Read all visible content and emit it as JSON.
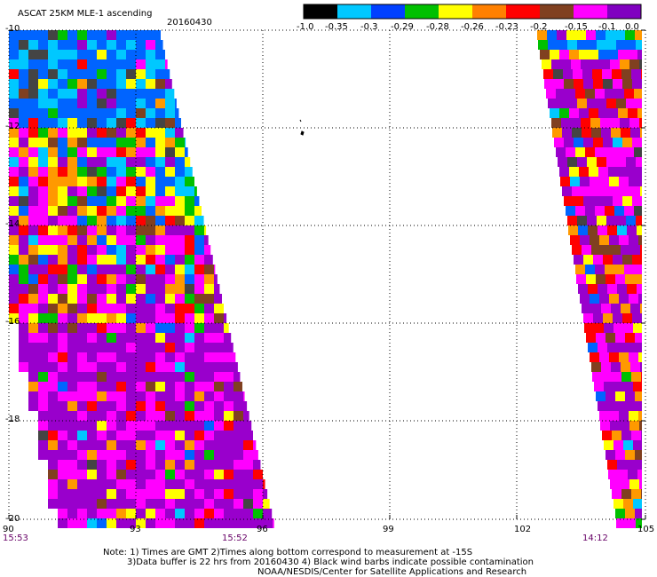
{
  "header": {
    "product": "ASCAT 25KM MLE-1 ascending",
    "date": "20160430"
  },
  "colorbar": {
    "labels": [
      "-1.0",
      "-0.35",
      "-0.3",
      "-0.29",
      "-0.28",
      "-0.26",
      "-0.23",
      "-0.2",
      "-0.15",
      "-0.1",
      "0.0"
    ],
    "colors": [
      "#000000",
      "#00c8ff",
      "#0040ff",
      "#00c000",
      "#ffff00",
      "#ff8000",
      "#ff0000",
      "#804020",
      "#ff00ff",
      "#8000c0"
    ]
  },
  "map": {
    "lat_labels": [
      "-10",
      "-12",
      "-14",
      "-16",
      "-18",
      "-20"
    ],
    "lon_labels": [
      "90",
      "93",
      "96",
      "99",
      "102",
      "105"
    ],
    "pass_times": [
      "15:53",
      "15:52",
      "14:12"
    ],
    "swath_palette": {
      "dark": "#444444",
      "light_blue": "#00c8ff",
      "blue": "#0064ff",
      "green": "#00c000",
      "yellow": "#ffff00",
      "orange": "#ff9900",
      "red": "#ff0000",
      "brown": "#804020",
      "magenta": "#ff00ff",
      "purple": "#9900cc"
    }
  },
  "footer": {
    "line1": "Note: 1) Times are GMT 2)Times along bottom correspond to measurement at -15S",
    "line2": "3)Data buffer is 22 hrs from 20160430 4) Black wind barbs indicate possible contamination",
    "line3": "NOAA/NESDIS/Center for Satellite Applications and Research"
  }
}
